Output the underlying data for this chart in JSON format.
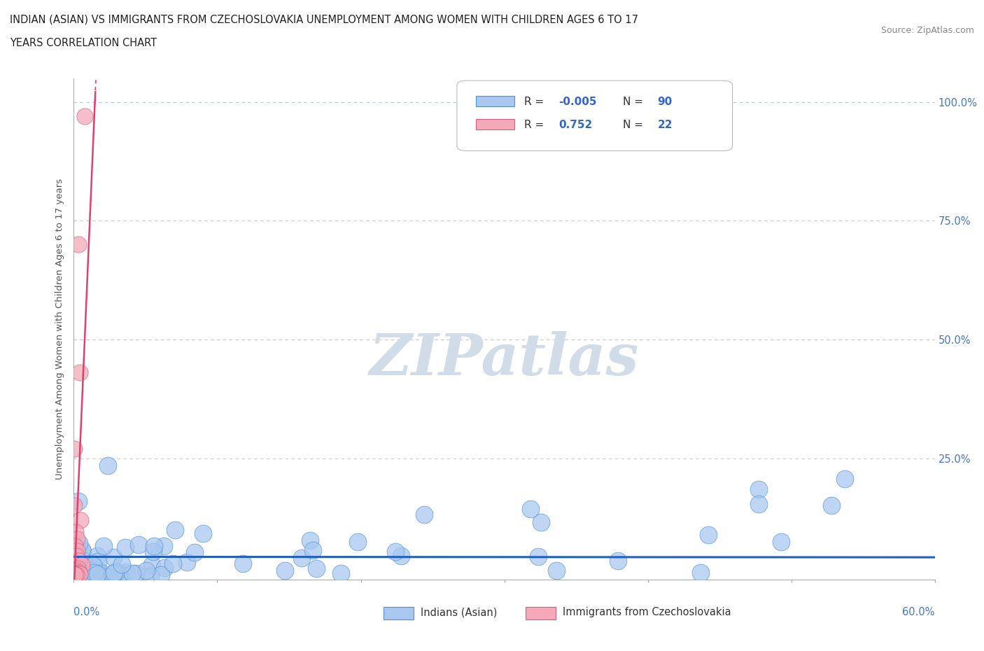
{
  "title_line1": "INDIAN (ASIAN) VS IMMIGRANTS FROM CZECHOSLOVAKIA UNEMPLOYMENT AMONG WOMEN WITH CHILDREN AGES 6 TO 17",
  "title_line2": "YEARS CORRELATION CHART",
  "source_text": "Source: ZipAtlas.com",
  "ylabel": "Unemployment Among Women with Children Ages 6 to 17 years",
  "color_indian": "#a8c8f0",
  "color_czecho": "#f4a8b8",
  "color_indian_line": "#2060c0",
  "color_czecho_line": "#e04070",
  "color_indian_edge": "#5090d0",
  "color_czecho_edge": "#d06080",
  "background_color": "#ffffff",
  "grid_color": "#b8cce0",
  "xlim": [
    0.0,
    0.6
  ],
  "ylim": [
    -0.005,
    1.05
  ],
  "watermark_color": "#d0dde8"
}
